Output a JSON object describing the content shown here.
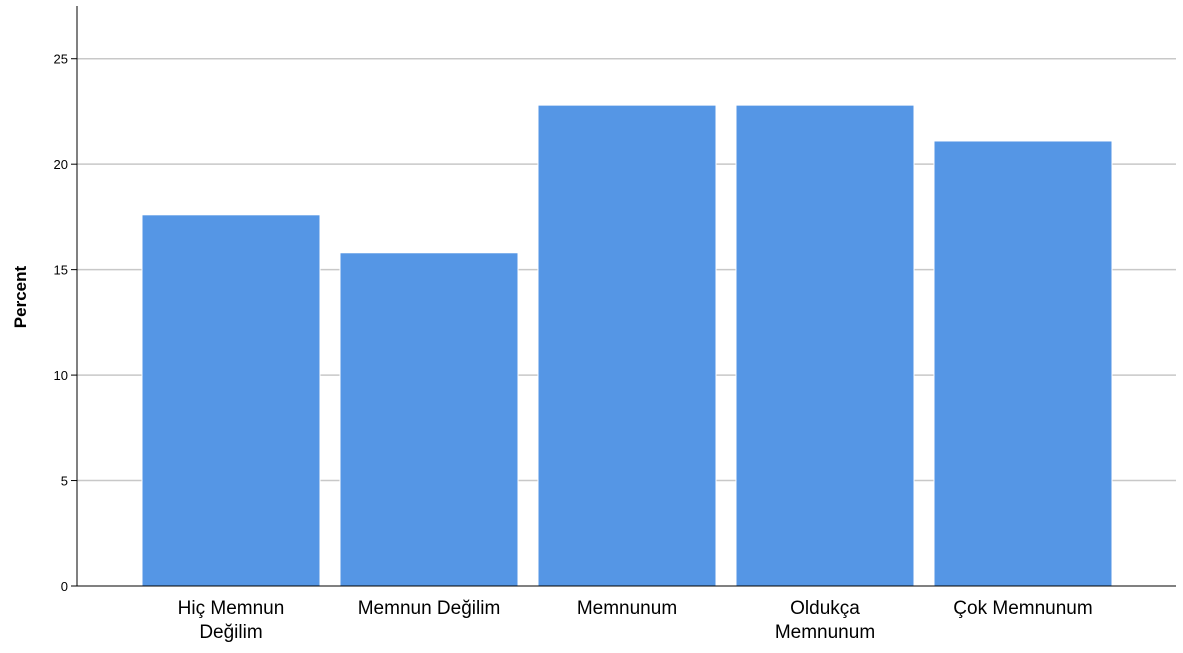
{
  "chart_data": {
    "type": "bar",
    "title": "",
    "xlabel": "",
    "ylabel": "Percent",
    "ylim": [
      0,
      27.5
    ],
    "yticks": [
      0,
      5,
      10,
      15,
      20,
      25
    ],
    "grid": true,
    "categories": [
      [
        "Hiç Memnun",
        "Değilim"
      ],
      [
        "Memnun Değilim"
      ],
      [
        "Memnunum"
      ],
      [
        "Oldukça",
        "Memnunum"
      ],
      [
        "Çok Memnunum"
      ]
    ],
    "values": [
      17.6,
      15.8,
      22.8,
      22.8,
      21.1
    ],
    "colors": {
      "bar": "#5596e5",
      "bar_edge": "#ffffff",
      "grid": "#c8c8c8",
      "axis": "#000000"
    }
  }
}
